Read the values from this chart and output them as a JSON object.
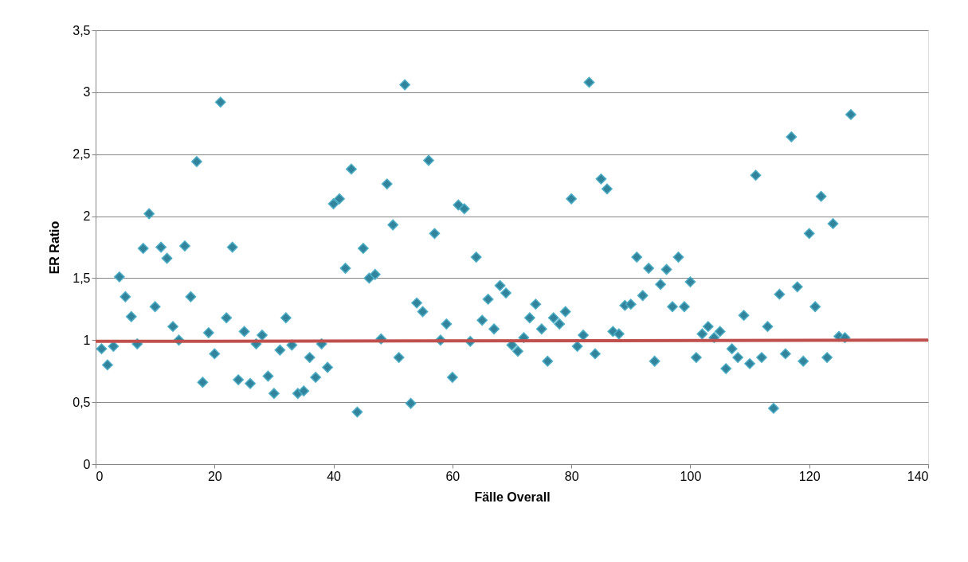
{
  "chart_data": {
    "type": "scatter",
    "xlabel": "Fälle Overall",
    "ylabel": "ER Ratio",
    "xlim": [
      0,
      140
    ],
    "xticks": [
      0,
      20,
      40,
      60,
      80,
      100,
      120,
      140
    ],
    "ylim": [
      0,
      3.5
    ],
    "yticks": [
      {
        "value": 0,
        "label": "0"
      },
      {
        "value": 0.5,
        "label": "0,5"
      },
      {
        "value": 1,
        "label": "1"
      },
      {
        "value": 1.5,
        "label": "1,5"
      },
      {
        "value": 2,
        "label": "2"
      },
      {
        "value": 2.5,
        "label": "2,5"
      },
      {
        "value": 3,
        "label": "3"
      },
      {
        "value": 3.5,
        "label": "3,5"
      }
    ],
    "grid": "y",
    "series": [
      {
        "color": "#31849b",
        "marker": "diamond",
        "x": [
          1,
          2,
          3,
          4,
          5,
          6,
          7,
          8,
          9,
          10,
          11,
          12,
          13,
          14,
          15,
          16,
          17,
          18,
          19,
          20,
          21,
          22,
          23,
          24,
          25,
          26,
          27,
          28,
          29,
          30,
          31,
          32,
          33,
          34,
          35,
          36,
          37,
          38,
          39,
          40,
          41,
          42,
          43,
          44,
          45,
          46,
          47,
          48,
          49,
          50,
          51,
          52,
          53,
          54,
          55,
          56,
          57,
          58,
          59,
          60,
          61,
          62,
          63,
          64,
          65,
          66,
          67,
          68,
          69,
          70,
          71,
          72,
          73,
          74,
          75,
          76,
          77,
          78,
          79,
          80,
          81,
          82,
          83,
          84,
          85,
          86,
          87,
          88,
          89,
          90,
          91,
          92,
          93,
          94,
          95,
          96,
          97,
          98,
          99,
          100,
          101,
          102,
          103,
          104,
          105,
          106,
          107,
          108,
          109,
          110,
          111,
          112,
          113,
          114,
          115,
          116,
          117,
          118,
          119,
          120,
          121,
          122,
          123,
          124,
          125,
          126,
          127
        ],
        "values": [
          0.93,
          0.8,
          0.95,
          1.51,
          1.35,
          1.19,
          0.97,
          1.74,
          2.02,
          1.27,
          1.75,
          1.66,
          1.11,
          1.0,
          1.76,
          1.35,
          2.44,
          0.66,
          1.06,
          0.89,
          2.92,
          1.18,
          1.75,
          0.68,
          1.07,
          0.65,
          0.97,
          1.04,
          0.71,
          0.57,
          0.92,
          1.18,
          0.96,
          0.57,
          0.59,
          0.86,
          0.7,
          0.97,
          0.78,
          2.1,
          2.14,
          1.58,
          2.38,
          0.42,
          1.74,
          1.5,
          1.53,
          1.01,
          2.26,
          1.93,
          0.86,
          3.06,
          0.49,
          1.3,
          1.23,
          2.45,
          1.86,
          1.0,
          1.13,
          0.7,
          2.09,
          2.06,
          0.99,
          1.67,
          1.16,
          1.33,
          1.09,
          1.44,
          1.38,
          0.96,
          0.91,
          1.02,
          1.18,
          1.29,
          1.09,
          0.83,
          1.18,
          1.13,
          1.23,
          2.14,
          0.95,
          1.04,
          3.08,
          0.89,
          2.3,
          2.22,
          1.07,
          1.05,
          1.28,
          1.29,
          1.67,
          1.36,
          1.58,
          0.83,
          1.45,
          1.57,
          1.27,
          1.67,
          1.27,
          1.47,
          0.86,
          1.05,
          1.11,
          1.02,
          1.07,
          0.77,
          0.93,
          0.86,
          1.2,
          0.81,
          2.33,
          0.86,
          1.11,
          0.45,
          1.37,
          0.89,
          2.64,
          1.43,
          0.83,
          1.86,
          1.27,
          2.16,
          0.86,
          1.94,
          1.03,
          1.02,
          2.82
        ]
      },
      {
        "type": "line",
        "color": "#c0504d",
        "marker": "none",
        "line_style": "solid",
        "x": [
          0,
          140
        ],
        "values": [
          0.99,
          1.0
        ]
      }
    ]
  }
}
